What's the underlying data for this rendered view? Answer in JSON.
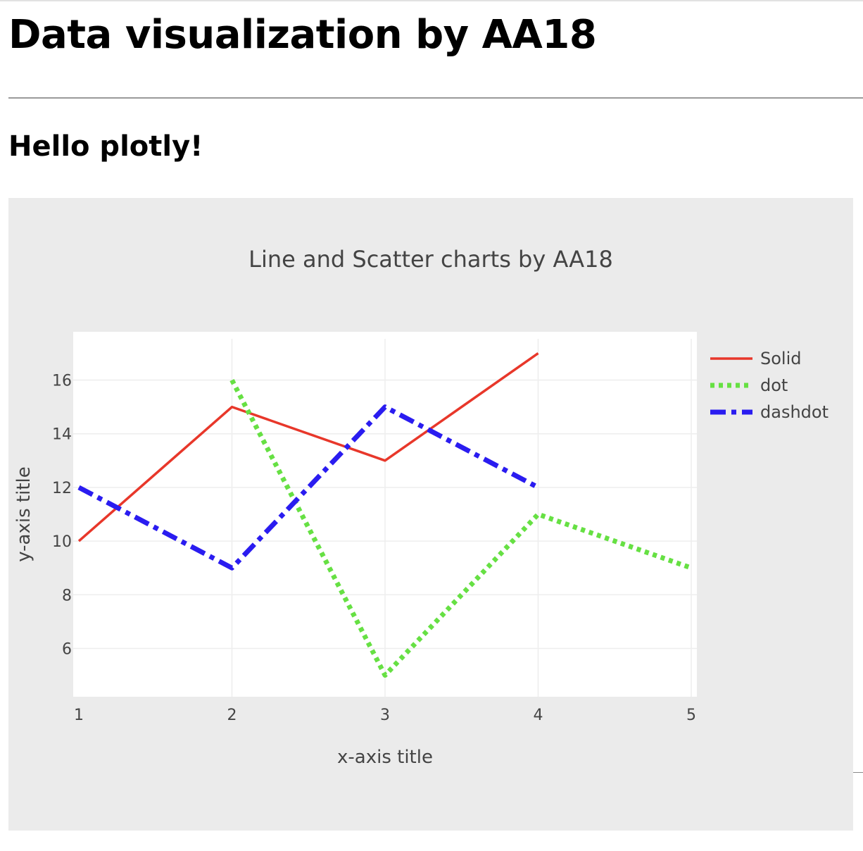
{
  "page": {
    "heading": "Data visualization by AA18",
    "subheading": "Hello plotly!"
  },
  "colors": {
    "paper_background": "#ebebeb",
    "plot_background": "#ffffff",
    "grid": "#eeeeee",
    "text": "#444444"
  },
  "chart_data": {
    "type": "line",
    "title": "Line and Scatter charts by AA18",
    "xlabel": "x-axis title",
    "ylabel": "y-axis title",
    "xlim": [
      1,
      5
    ],
    "ylim": [
      4.2,
      17.8
    ],
    "xticks": [
      1,
      2,
      3,
      4,
      5
    ],
    "yticks": [
      6,
      8,
      10,
      12,
      14,
      16
    ],
    "grid": true,
    "legend_position": "top-right",
    "series": [
      {
        "name": "Solid",
        "dash": "solid",
        "color": "#e8372a",
        "x": [
          1,
          2,
          3,
          4
        ],
        "y": [
          10,
          15,
          13,
          17
        ]
      },
      {
        "name": "dot",
        "dash": "dot",
        "color": "#66e043",
        "x": [
          2,
          3,
          4,
          5
        ],
        "y": [
          16,
          5,
          11,
          9
        ]
      },
      {
        "name": "dashdot",
        "dash": "dashdot",
        "color": "#2a1cf0",
        "x": [
          1,
          2,
          3,
          4
        ],
        "y": [
          12,
          9,
          15,
          12
        ]
      }
    ]
  }
}
